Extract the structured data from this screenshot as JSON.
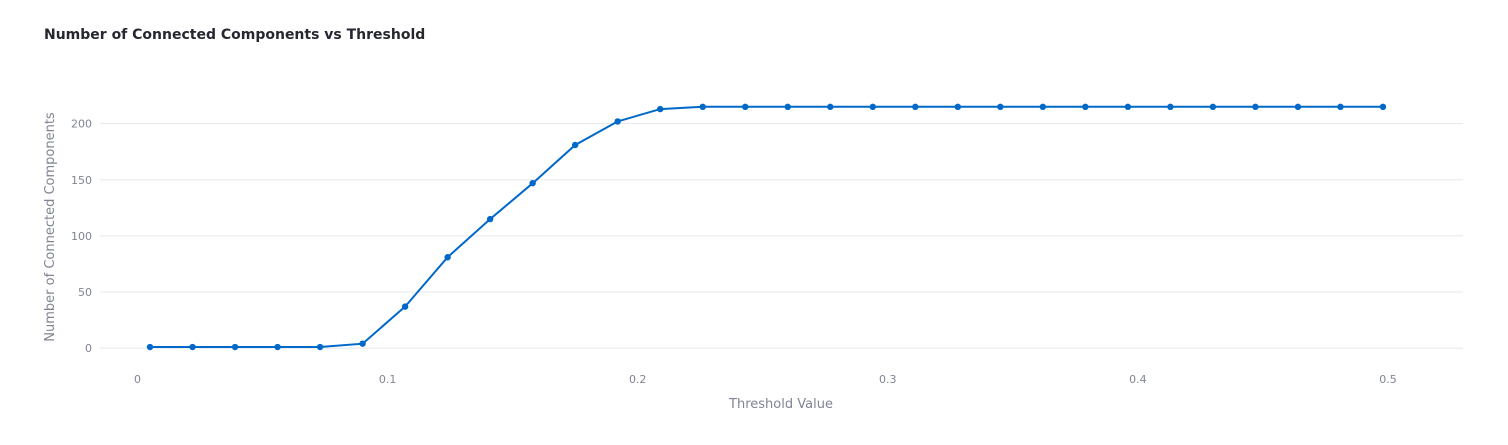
{
  "chart_data": {
    "type": "line",
    "title": "Number of Connected Components vs Threshold",
    "xlabel": "Threshold Value",
    "ylabel": "Number of Connected Components",
    "xlim": [
      -0.015,
      0.53
    ],
    "ylim": [
      -15,
      230
    ],
    "xticks": [
      0,
      0.1,
      0.2,
      0.3,
      0.4,
      0.5
    ],
    "xtick_labels": [
      "0",
      "0.1",
      "0.2",
      "0.3",
      "0.4",
      "0.5"
    ],
    "yticks": [
      0,
      50,
      100,
      150,
      200
    ],
    "ytick_labels": [
      "0",
      "50",
      "100",
      "150",
      "200"
    ],
    "grid": true,
    "legend": "none",
    "color": "#0068c9",
    "series": [
      {
        "x": [
          0.005,
          0.022,
          0.039,
          0.056,
          0.073,
          0.09,
          0.107,
          0.124,
          0.141,
          0.158,
          0.175,
          0.192,
          0.209,
          0.226,
          0.243,
          0.26,
          0.277,
          0.294,
          0.311,
          0.328,
          0.345,
          0.362,
          0.379,
          0.396,
          0.413,
          0.43,
          0.447,
          0.464,
          0.481,
          0.498
        ],
        "values": [
          1,
          1,
          1,
          1,
          1,
          4,
          37,
          81,
          115,
          147,
          181,
          202,
          213,
          215,
          215,
          215,
          215,
          215,
          215,
          215,
          215,
          215,
          215,
          215,
          215,
          215,
          215,
          215,
          215,
          215
        ]
      }
    ]
  }
}
